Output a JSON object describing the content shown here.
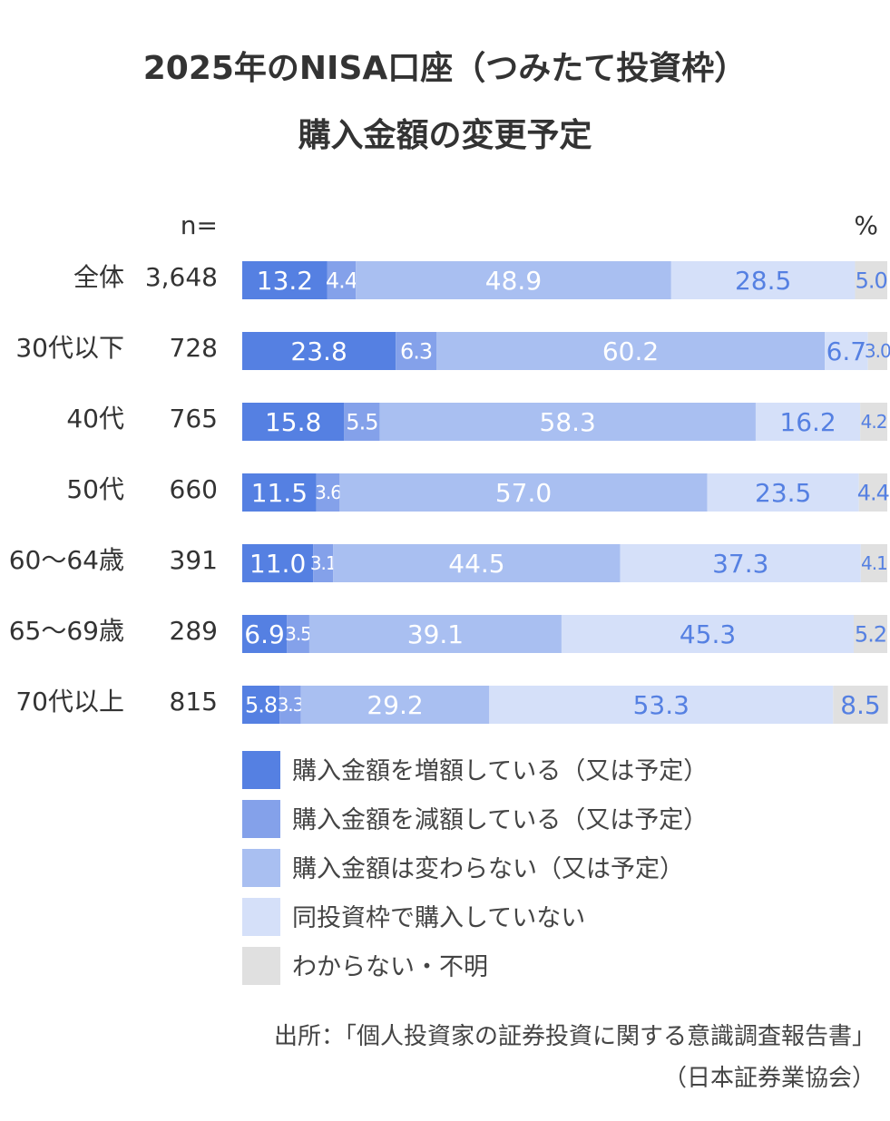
{
  "title_line1": "2025年のNISA口座（つみたて投資枠）",
  "title_line2": "購入金額の変更予定",
  "source_line1": "出所：「個人投資家の証券投資に関する意識調査報告書」",
  "source_line2": "（日本証券業協会）",
  "chart_data": {
    "type": "bar",
    "orientation": "horizontal",
    "stacked": true,
    "n_header": "n=",
    "unit_label": "%",
    "xlim": [
      0,
      100
    ],
    "categories": [
      "全体",
      "30代以下",
      "40代",
      "50代",
      "60〜64歳",
      "65〜69歳",
      "70代以上"
    ],
    "n_values": [
      "3,648",
      "728",
      "765",
      "660",
      "391",
      "289",
      "815"
    ],
    "series": [
      {
        "name": "購入金額を増額している（又は予定）",
        "color": "#5580e2",
        "label_color": "#ffffff",
        "values": [
          13.2,
          23.8,
          15.8,
          11.5,
          11.0,
          6.9,
          5.8
        ]
      },
      {
        "name": "購入金額を減額している（又は予定）",
        "color": "#84a1ea",
        "label_color": "#ffffff",
        "values": [
          4.4,
          6.3,
          5.5,
          3.6,
          3.1,
          3.5,
          3.3
        ]
      },
      {
        "name": "購入金額は変わらない（又は予定）",
        "color": "#a9bff1",
        "label_color": "#ffffff",
        "values": [
          48.9,
          60.2,
          58.3,
          57.0,
          44.5,
          39.1,
          29.2
        ]
      },
      {
        "name": "同投資枠で購入していない",
        "color": "#d5e0f9",
        "label_color": "#5580e2",
        "values": [
          28.5,
          6.7,
          16.2,
          23.5,
          37.3,
          45.3,
          53.3
        ]
      },
      {
        "name": "わからない・不明",
        "color": "#e0e0e0",
        "label_color": "#5580e2",
        "values": [
          5.0,
          3.0,
          4.2,
          4.4,
          4.1,
          5.2,
          8.5
        ]
      }
    ],
    "legend_position": "bottom",
    "grid": false
  }
}
